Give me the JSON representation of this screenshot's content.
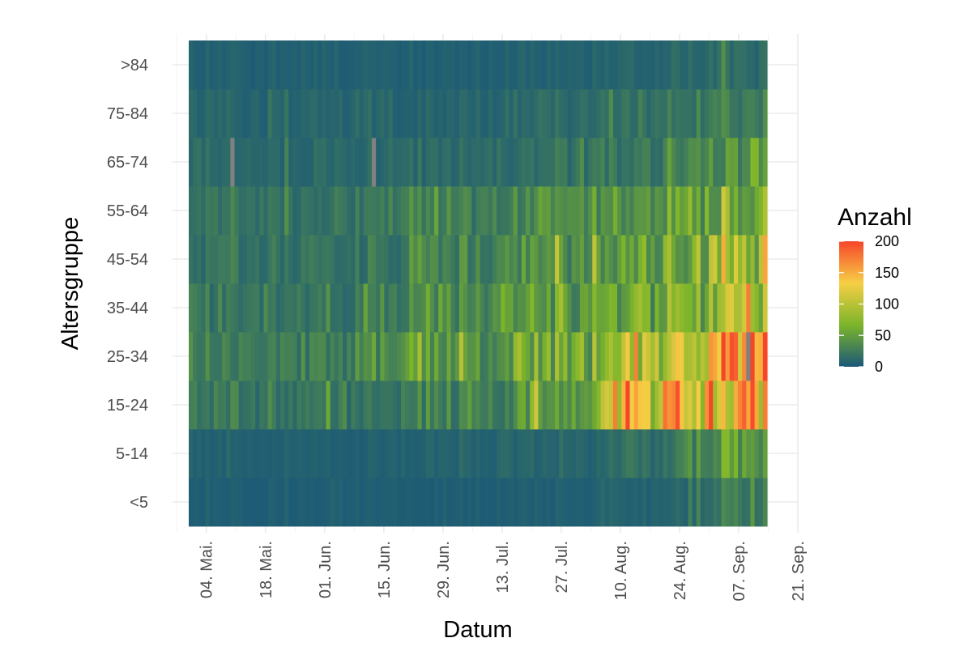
{
  "chart_data": {
    "type": "heatmap",
    "title": "",
    "xlabel": "Datum",
    "ylabel": "Altersgruppe",
    "x_start": "2020-05-01",
    "x_end": "2020-09-16",
    "xlim": [
      "2020-04-26",
      "2020-09-21"
    ],
    "x_ticks": [
      {
        "date": "2020-05-04",
        "label": "04. Mai."
      },
      {
        "date": "2020-05-18",
        "label": "18. Mai."
      },
      {
        "date": "2020-06-01",
        "label": "01. Jun."
      },
      {
        "date": "2020-06-15",
        "label": "15. Jun."
      },
      {
        "date": "2020-06-29",
        "label": "29. Jun."
      },
      {
        "date": "2020-07-13",
        "label": "13. Jul."
      },
      {
        "date": "2020-07-27",
        "label": "27. Jul."
      },
      {
        "date": "2020-08-10",
        "label": "10. Aug."
      },
      {
        "date": "2020-08-24",
        "label": "24. Aug."
      },
      {
        "date": "2020-09-07",
        "label": "07. Sep."
      },
      {
        "date": "2020-09-21",
        "label": "21. Sep."
      }
    ],
    "age_groups": [
      "<5",
      "5-14",
      "15-24",
      "25-34",
      "35-44",
      "45-54",
      "55-64",
      "65-74",
      "75-84",
      ">84"
    ],
    "levels": [
      {
        "from": "2020-05-01",
        "to": "2020-06-22",
        "values": [
          4,
          6,
          22,
          28,
          22,
          20,
          20,
          12,
          10,
          6
        ]
      },
      {
        "from": "2020-06-22",
        "to": "2020-07-20",
        "values": [
          4,
          8,
          28,
          42,
          38,
          32,
          28,
          14,
          10,
          6
        ]
      },
      {
        "from": "2020-07-20",
        "to": "2020-08-10",
        "values": [
          5,
          9,
          52,
          58,
          45,
          40,
          36,
          18,
          14,
          8
        ]
      },
      {
        "from": "2020-08-10",
        "to": "2020-08-27",
        "values": [
          7,
          16,
          125,
          80,
          55,
          50,
          44,
          22,
          18,
          9
        ]
      },
      {
        "from": "2020-08-27",
        "to": "2020-09-05",
        "values": [
          12,
          30,
          110,
          85,
          58,
          60,
          50,
          28,
          20,
          10
        ]
      },
      {
        "from": "2020-09-05",
        "to": "2020-09-16",
        "values": [
          20,
          48,
          150,
          145,
          95,
          90,
          68,
          36,
          28,
          14
        ]
      }
    ],
    "missing": [
      {
        "date": "2020-05-11",
        "group": "65-74"
      },
      {
        "date": "2020-06-14",
        "group": "65-74"
      },
      {
        "date": "2020-09-12",
        "group": "25-34"
      }
    ],
    "legend": {
      "title": "Anzahl",
      "placement": "right",
      "ticks": [
        0,
        50,
        100,
        150,
        200
      ],
      "range": [
        0,
        200
      ],
      "colors": [
        "#1a5878",
        "#7cb52a",
        "#f7cf45",
        "#f6462a"
      ]
    },
    "missing_color": "#808080",
    "grid": true
  }
}
